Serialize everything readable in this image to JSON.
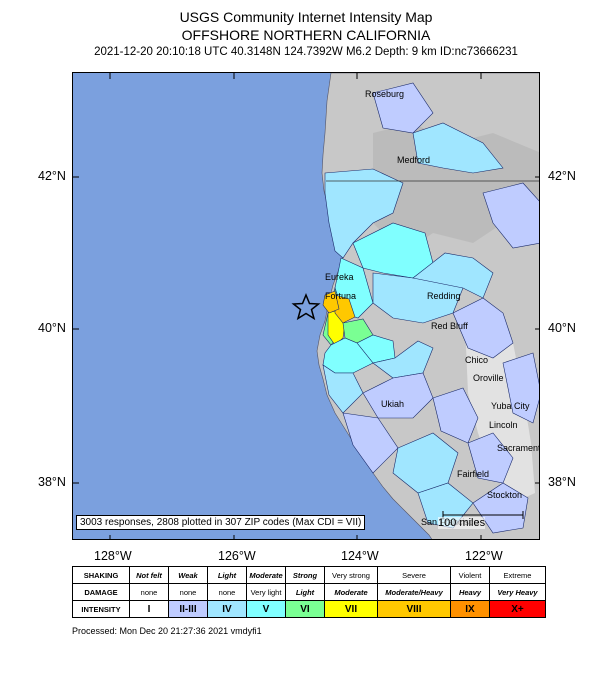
{
  "header": {
    "title": "USGS Community Internet Intensity Map",
    "region": "OFFSHORE NORTHERN CALIFORNIA",
    "event_info": "2021-12-20 20:10:18 UTC 40.3148N 124.7392W M6.2 Depth: 9 km ID:nc73666231"
  },
  "map": {
    "lat_ticks": [
      "42°N",
      "40°N",
      "38°N"
    ],
    "lon_ticks": [
      "128°W",
      "126°W",
      "124°W",
      "122°W"
    ],
    "cities": [
      "Roseburg",
      "Medford",
      "Eureka",
      "Fortuna",
      "Redding",
      "Red Bluff",
      "Chico",
      "Oroville",
      "Ukiah",
      "Yuba City",
      "Lincoln",
      "Sacramento",
      "Fairfield",
      "Stockton",
      "San Francisco"
    ],
    "responses_text": "3003 responses, 2808 plotted in 307 ZIP codes (Max CDI = VII)",
    "scale_label": "100 miles",
    "colors": {
      "ocean": "#7ba0de",
      "land": "#c9c9c9",
      "epicenter_marker": "star"
    }
  },
  "legend": {
    "rows": [
      {
        "label": "SHAKING",
        "cells": [
          "Not felt",
          "Weak",
          "Light",
          "Moderate",
          "Strong",
          "Very strong",
          "Severe",
          "Violent",
          "Extreme"
        ]
      },
      {
        "label": "DAMAGE",
        "cells": [
          "none",
          "none",
          "none",
          "Very light",
          "Light",
          "Moderate",
          "Moderate/Heavy",
          "Heavy",
          "Very Heavy"
        ]
      },
      {
        "label": "INTENSITY",
        "cells": [
          "I",
          "II-III",
          "IV",
          "V",
          "VI",
          "VII",
          "VIII",
          "IX",
          "X+"
        ]
      }
    ],
    "intensity_colors": [
      "#ffffff",
      "#bfccff",
      "#a0e6ff",
      "#80ffff",
      "#7aff93",
      "#ffff00",
      "#ffc800",
      "#ff9100",
      "#ff0000"
    ]
  },
  "footer": {
    "processed": "Processed: Mon Dec 20 21:27:36 2021 vmdyfi1"
  }
}
